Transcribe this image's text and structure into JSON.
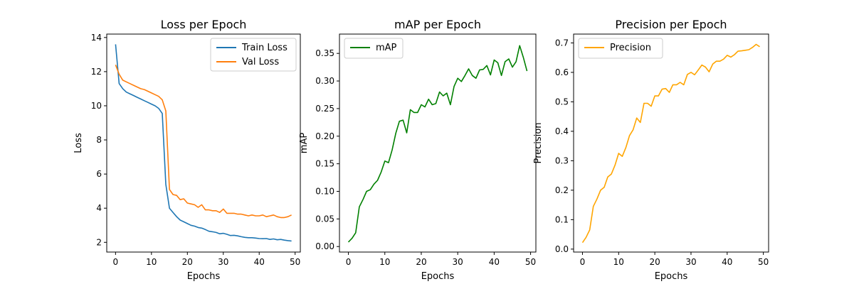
{
  "chart_data": [
    {
      "type": "line",
      "title": "Loss per Epoch",
      "xlabel": "Epochs",
      "ylabel": "Loss",
      "xlim": [
        -2.45,
        51.45
      ],
      "ylim": [
        1.43,
        14.2
      ],
      "xticks": [
        0,
        10,
        20,
        30,
        40,
        50
      ],
      "yticks": [
        2,
        4,
        6,
        8,
        10,
        12,
        14
      ],
      "legend": "top-right",
      "grid": false,
      "x": [
        0,
        1,
        2,
        3,
        4,
        5,
        6,
        7,
        8,
        9,
        10,
        11,
        12,
        13,
        14,
        15,
        16,
        17,
        18,
        19,
        20,
        21,
        22,
        23,
        24,
        25,
        26,
        27,
        28,
        29,
        30,
        31,
        32,
        33,
        34,
        35,
        36,
        37,
        38,
        39,
        40,
        41,
        42,
        43,
        44,
        45,
        46,
        47,
        48,
        49
      ],
      "series": [
        {
          "name": "Train Loss",
          "color": "#1f77b4",
          "values": [
            13.6,
            11.3,
            11.0,
            10.8,
            10.7,
            10.6,
            10.5,
            10.4,
            10.3,
            10.2,
            10.1,
            10.0,
            9.85,
            9.55,
            5.4,
            4.0,
            3.75,
            3.5,
            3.3,
            3.2,
            3.1,
            3.0,
            2.95,
            2.87,
            2.83,
            2.75,
            2.65,
            2.62,
            2.58,
            2.5,
            2.53,
            2.47,
            2.4,
            2.41,
            2.38,
            2.33,
            2.29,
            2.27,
            2.27,
            2.25,
            2.22,
            2.21,
            2.22,
            2.17,
            2.2,
            2.15,
            2.17,
            2.13,
            2.1,
            2.08
          ]
        },
        {
          "name": "Val Loss",
          "color": "#ff7f0e",
          "values": [
            12.4,
            11.85,
            11.5,
            11.4,
            11.3,
            11.2,
            11.1,
            11.0,
            10.95,
            10.85,
            10.75,
            10.65,
            10.55,
            10.35,
            9.7,
            5.1,
            4.8,
            4.75,
            4.5,
            4.55,
            4.3,
            4.25,
            4.2,
            4.05,
            4.2,
            3.9,
            3.9,
            3.85,
            3.85,
            3.75,
            3.95,
            3.7,
            3.7,
            3.7,
            3.65,
            3.65,
            3.6,
            3.55,
            3.6,
            3.55,
            3.55,
            3.6,
            3.5,
            3.55,
            3.6,
            3.5,
            3.45,
            3.45,
            3.5,
            3.6
          ]
        }
      ]
    },
    {
      "type": "line",
      "title": "mAP per Epoch",
      "xlabel": "Epochs",
      "ylabel": "mAP",
      "xlim": [
        -2.45,
        51.45
      ],
      "ylim": [
        -0.01,
        0.385
      ],
      "xticks": [
        0,
        10,
        20,
        30,
        40,
        50
      ],
      "yticks": [
        0.0,
        0.05,
        0.1,
        0.15,
        0.2,
        0.25,
        0.3,
        0.35
      ],
      "ytick_labels": [
        "0.00",
        "0.05",
        "0.10",
        "0.15",
        "0.20",
        "0.25",
        "0.30",
        "0.35"
      ],
      "legend": "top-left",
      "grid": false,
      "x": [
        0,
        1,
        2,
        3,
        4,
        5,
        6,
        7,
        8,
        9,
        10,
        11,
        12,
        13,
        14,
        15,
        16,
        17,
        18,
        19,
        20,
        21,
        22,
        23,
        24,
        25,
        26,
        27,
        28,
        29,
        30,
        31,
        32,
        33,
        34,
        35,
        36,
        37,
        38,
        39,
        40,
        41,
        42,
        43,
        44,
        45,
        46,
        47,
        48,
        49
      ],
      "series": [
        {
          "name": "mAP",
          "color": "#008000",
          "values": [
            0.008,
            0.015,
            0.025,
            0.072,
            0.085,
            0.1,
            0.103,
            0.113,
            0.12,
            0.135,
            0.155,
            0.152,
            0.175,
            0.205,
            0.227,
            0.229,
            0.206,
            0.248,
            0.243,
            0.243,
            0.257,
            0.253,
            0.267,
            0.257,
            0.259,
            0.28,
            0.273,
            0.278,
            0.257,
            0.29,
            0.305,
            0.299,
            0.31,
            0.322,
            0.31,
            0.305,
            0.32,
            0.321,
            0.328,
            0.311,
            0.338,
            0.333,
            0.31,
            0.335,
            0.34,
            0.325,
            0.335,
            0.364,
            0.343,
            0.318
          ]
        }
      ]
    },
    {
      "type": "line",
      "title": "Precision per Epoch",
      "xlabel": "Epochs",
      "ylabel": "Precision",
      "xlim": [
        -2.45,
        51.45
      ],
      "ylim": [
        -0.01,
        0.73
      ],
      "xticks": [
        0,
        10,
        20,
        30,
        40,
        50
      ],
      "yticks": [
        0.0,
        0.1,
        0.2,
        0.3,
        0.4,
        0.5,
        0.6,
        0.7
      ],
      "ytick_labels": [
        "0.0",
        "0.1",
        "0.2",
        "0.3",
        "0.4",
        "0.5",
        "0.6",
        "0.7"
      ],
      "legend": "top-left",
      "grid": false,
      "x": [
        0,
        1,
        2,
        3,
        4,
        5,
        6,
        7,
        8,
        9,
        10,
        11,
        12,
        13,
        14,
        15,
        16,
        17,
        18,
        19,
        20,
        21,
        22,
        23,
        24,
        25,
        26,
        27,
        28,
        29,
        30,
        31,
        32,
        33,
        34,
        35,
        36,
        37,
        38,
        39,
        40,
        41,
        42,
        43,
        44,
        45,
        46,
        47,
        48,
        49
      ],
      "series": [
        {
          "name": "Precision",
          "color": "#ffa500",
          "values": [
            0.022,
            0.04,
            0.065,
            0.145,
            0.17,
            0.2,
            0.21,
            0.245,
            0.255,
            0.285,
            0.325,
            0.315,
            0.345,
            0.385,
            0.405,
            0.445,
            0.43,
            0.495,
            0.495,
            0.485,
            0.52,
            0.52,
            0.543,
            0.545,
            0.532,
            0.558,
            0.558,
            0.566,
            0.558,
            0.593,
            0.6,
            0.592,
            0.608,
            0.625,
            0.618,
            0.602,
            0.628,
            0.638,
            0.638,
            0.645,
            0.658,
            0.652,
            0.66,
            0.672,
            0.673,
            0.675,
            0.677,
            0.685,
            0.695,
            0.687
          ]
        }
      ]
    }
  ]
}
